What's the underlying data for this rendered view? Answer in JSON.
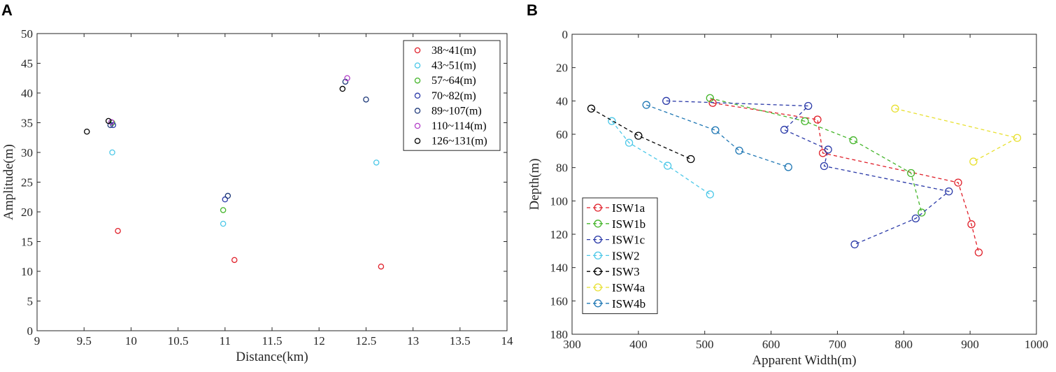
{
  "panels": {
    "a_letter": "A",
    "b_letter": "B"
  },
  "chart_data": [
    {
      "type": "scatter",
      "panel": "A",
      "title": "",
      "xlabel": "Distance(km)",
      "ylabel": "Amplitude(m)",
      "xlim": [
        9,
        14
      ],
      "ylim": [
        0,
        50
      ],
      "xticks": [
        "9",
        "9.5",
        "10",
        "10.5",
        "11",
        "11.5",
        "12",
        "12.5",
        "13",
        "13.5",
        "14"
      ],
      "yticks": [
        "0",
        "5",
        "10",
        "15",
        "20",
        "25",
        "30",
        "35",
        "40",
        "45",
        "50"
      ],
      "legend_position": "top-right",
      "series": [
        {
          "name": "38~41(m)",
          "color": "#e0202a",
          "points": [
            [
              9.86,
              16.8
            ],
            [
              11.1,
              11.9
            ],
            [
              12.66,
              10.8
            ]
          ]
        },
        {
          "name": "43~51(m)",
          "color": "#4cc8e8",
          "points": [
            [
              9.8,
              30.0
            ],
            [
              10.98,
              18.0
            ],
            [
              12.61,
              28.3
            ]
          ]
        },
        {
          "name": "57~64(m)",
          "color": "#44b52a",
          "points": [
            [
              9.8,
              35.0
            ],
            [
              10.98,
              20.3
            ]
          ]
        },
        {
          "name": "70~82(m)",
          "color": "#2b3aa8",
          "points": [
            [
              9.81,
              34.6
            ],
            [
              11.0,
              22.1
            ]
          ]
        },
        {
          "name": "89~107(m)",
          "color": "#1f3a7a",
          "points": [
            [
              9.78,
              34.6
            ],
            [
              11.03,
              22.7
            ],
            [
              12.5,
              38.9
            ],
            [
              12.28,
              41.9
            ]
          ]
        },
        {
          "name": "110~114(m)",
          "color": "#b23ec8",
          "points": [
            [
              9.79,
              35.1
            ],
            [
              12.3,
              42.5
            ]
          ]
        },
        {
          "name": "126~131(m)",
          "color": "#000000",
          "points": [
            [
              9.53,
              33.5
            ],
            [
              9.76,
              35.3
            ],
            [
              12.25,
              40.7
            ]
          ]
        }
      ]
    },
    {
      "type": "line",
      "panel": "B",
      "title": "",
      "xlabel": "Apparent Width(m)",
      "ylabel": "Depth(m)",
      "xlim": [
        300,
        1000
      ],
      "ylim": [
        0,
        180
      ],
      "y_reversed": true,
      "xticks": [
        "300",
        "400",
        "500",
        "600",
        "700",
        "800",
        "900",
        "1000"
      ],
      "yticks": [
        "0",
        "20",
        "40",
        "60",
        "80",
        "100",
        "120",
        "140",
        "160",
        "180"
      ],
      "legend_position": "bottom-left",
      "series": [
        {
          "name": "ISW1a",
          "color": "#e0202a",
          "points": [
            [
              512,
              41.2
            ],
            [
              670,
              51.2
            ],
            [
              678,
              71.3
            ],
            [
              882,
              89.0
            ],
            [
              902,
              114.0
            ],
            [
              913,
              130.9
            ]
          ]
        },
        {
          "name": "ISW1b",
          "color": "#44b52a",
          "points": [
            [
              508,
              38.3
            ],
            [
              651,
              52.2
            ],
            [
              724,
              63.6
            ],
            [
              811,
              83.3
            ],
            [
              827,
              107.0
            ]
          ]
        },
        {
          "name": "ISW1c",
          "color": "#2b3aa8",
          "points": [
            [
              442,
              40.0
            ],
            [
              656,
              43.0
            ],
            [
              620,
              57.3
            ],
            [
              686,
              69.2
            ],
            [
              680,
              79.1
            ],
            [
              868,
              94.3
            ],
            [
              818,
              110.5
            ],
            [
              726,
              126.1
            ]
          ]
        },
        {
          "name": "ISW2",
          "color": "#4cc8e8",
          "points": [
            [
              360,
              52.1
            ],
            [
              386,
              65.1
            ],
            [
              444,
              78.9
            ],
            [
              508,
              96.1
            ]
          ]
        },
        {
          "name": "ISW3",
          "color": "#000000",
          "points": [
            [
              329,
              44.6
            ],
            [
              400,
              60.9
            ],
            [
              479,
              74.9
            ]
          ]
        },
        {
          "name": "ISW4a",
          "color": "#e8e030",
          "points": [
            [
              787,
              44.6
            ],
            [
              971,
              62.2
            ],
            [
              905,
              76.4
            ]
          ]
        },
        {
          "name": "ISW4b",
          "color": "#1f77b4",
          "points": [
            [
              412,
              42.4
            ],
            [
              516,
              57.6
            ],
            [
              552,
              69.8
            ],
            [
              626,
              79.7
            ]
          ]
        }
      ]
    }
  ]
}
